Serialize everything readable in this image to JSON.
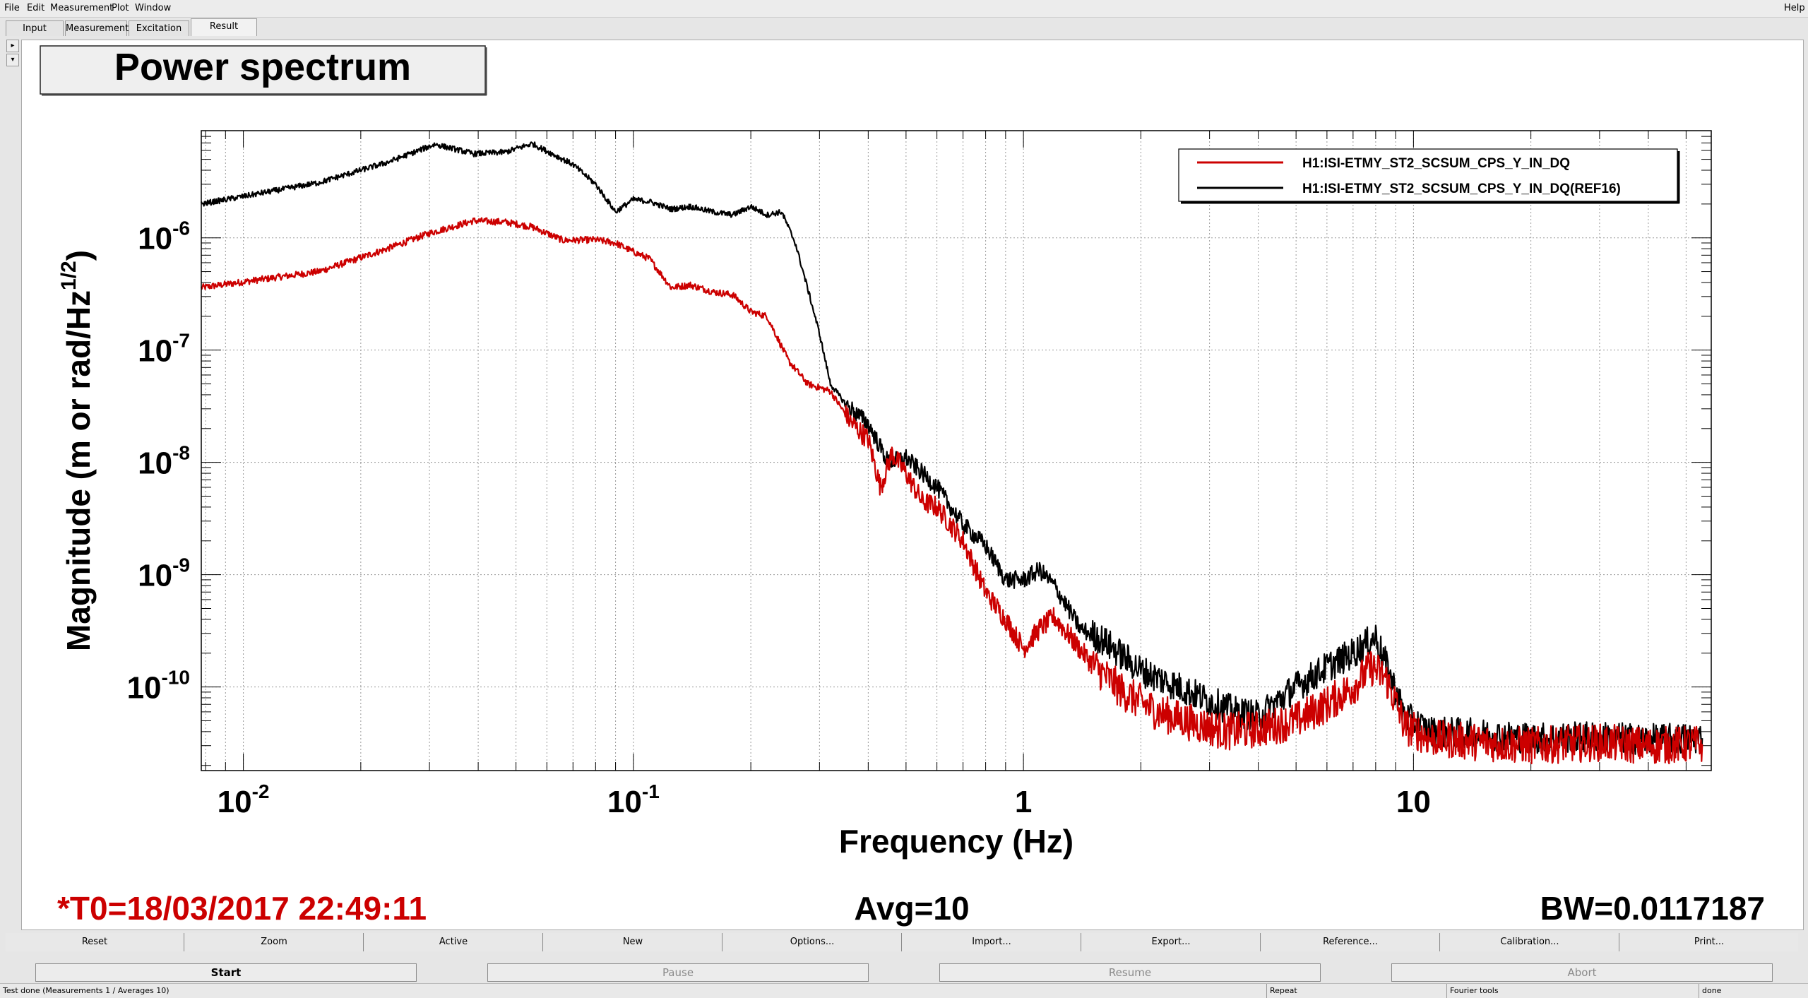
{
  "menu": {
    "file": "File",
    "edit": "Edit",
    "measurement": "Measurement",
    "plot": "Plot",
    "window": "Window",
    "help": "Help"
  },
  "tabs": [
    "Input",
    "Measurement",
    "Excitation",
    "Result"
  ],
  "plot": {
    "title": "Power spectrum",
    "ylabel_main": "Magnitude (m or rad/Hz",
    "ylabel_sup": "1/2",
    "ylabel_close": ")",
    "xlabel": "Frequency (Hz)",
    "t0": "*T0=18/03/2017 22:49:11",
    "avg": "Avg=10",
    "bw": "BW=0.0117187",
    "y_tick_mantissa": "10",
    "y_tick_exps": [
      "-6",
      "-7",
      "-8",
      "-9",
      "-10"
    ],
    "x_tick_labels": [
      {
        "base": "10",
        "exp": "-2"
      },
      {
        "base": "10",
        "exp": "-1"
      },
      {
        "base": "1",
        "exp": ""
      },
      {
        "base": "10",
        "exp": ""
      }
    ],
    "legend": [
      {
        "label": "H1:ISI-ETMY_ST2_SCSUM_CPS_Y_IN_DQ",
        "color": "#cc0000"
      },
      {
        "label": "H1:ISI-ETMY_ST2_SCSUM_CPS_Y_IN_DQ(REF16)",
        "color": "#000000"
      }
    ]
  },
  "chart_data": {
    "type": "line",
    "title": "Power spectrum",
    "xlabel": "Frequency (Hz)",
    "ylabel": "Magnitude (m or rad/Hz^1/2)",
    "x_scale": "log",
    "y_scale": "log",
    "xlim": [
      0.0078,
      58
    ],
    "ylim": [
      1.8e-11,
      9e-06
    ],
    "grid": true,
    "legend_position": "top-right",
    "series": [
      {
        "name": "H1:ISI-ETMY_ST2_SCSUM_CPS_Y_IN_DQ",
        "color": "#cc0000",
        "noise": 0.12,
        "x": [
          0.0078,
          0.0156,
          0.0234,
          0.03,
          0.039,
          0.047,
          0.055,
          0.066,
          0.08,
          0.09,
          0.1,
          0.11,
          0.125,
          0.14,
          0.16,
          0.18,
          0.2,
          0.22,
          0.25,
          0.28,
          0.32,
          0.36,
          0.4,
          0.43,
          0.46,
          0.5,
          0.55,
          0.6,
          0.7,
          0.8,
          0.9,
          1.0,
          1.1,
          1.2,
          1.35,
          1.5,
          1.8,
          2.2,
          2.7,
          3.3,
          4.0,
          5.0,
          6.0,
          7.0,
          7.8,
          8.5,
          9.5,
          11,
          15,
          20,
          30,
          40,
          55
        ],
        "y": [
          3.6e-07,
          5e-07,
          8e-07,
          1.1e-06,
          1.42e-06,
          1.38e-06,
          1.25e-06,
          9.5e-07,
          9.6e-07,
          9e-07,
          7.5e-07,
          6.5e-07,
          3.6e-07,
          3.8e-07,
          3.3e-07,
          3.1e-07,
          2.2e-07,
          2e-07,
          8e-08,
          5e-08,
          4.3e-08,
          2.3e-08,
          1.6e-08,
          6e-09,
          1.2e-08,
          8e-09,
          4.5e-09,
          4e-09,
          2e-09,
          7e-10,
          4e-10,
          2.2e-10,
          3.3e-10,
          4.2e-10,
          2.5e-10,
          1.6e-10,
          9e-11,
          6e-11,
          4.8e-11,
          4e-11,
          4.2e-11,
          5e-11,
          7e-11,
          1e-10,
          1.5e-10,
          1.2e-10,
          4.5e-11,
          3.5e-11,
          3.2e-11,
          3e-11,
          3.2e-11,
          3e-11,
          3.1e-11
        ]
      },
      {
        "name": "H1:ISI-ETMY_ST2_SCSUM_CPS_Y_IN_DQ(REF16)",
        "color": "#000000",
        "noise": 0.1,
        "x": [
          0.0078,
          0.0156,
          0.0234,
          0.031,
          0.039,
          0.047,
          0.055,
          0.07,
          0.08,
          0.09,
          0.1,
          0.11,
          0.125,
          0.14,
          0.16,
          0.18,
          0.2,
          0.22,
          0.24,
          0.26,
          0.28,
          0.3,
          0.32,
          0.35,
          0.4,
          0.45,
          0.5,
          0.6,
          0.7,
          0.8,
          0.9,
          1.0,
          1.1,
          1.2,
          1.4,
          1.6,
          2.0,
          2.5,
          3.0,
          3.5,
          4.0,
          5.0,
          6.0,
          7.0,
          8.0,
          8.5,
          9.5,
          11,
          15,
          20,
          30,
          40,
          55
        ],
        "y": [
          2e-06,
          3.1e-06,
          4.7e-06,
          6.8e-06,
          5.6e-06,
          5.8e-06,
          6.9e-06,
          4.5e-06,
          3e-06,
          1.7e-06,
          2.2e-06,
          2.1e-06,
          1.8e-06,
          1.9e-06,
          1.7e-06,
          1.6e-06,
          1.9e-06,
          1.6e-06,
          1.7e-06,
          9e-07,
          3.5e-07,
          1.4e-07,
          5e-08,
          3.3e-08,
          2.2e-08,
          1e-08,
          1.1e-08,
          6e-09,
          2.8e-09,
          1.8e-09,
          9e-10,
          9e-10,
          1.1e-09,
          8e-10,
          3.3e-10,
          2.6e-10,
          1.4e-10,
          1e-10,
          7.5e-11,
          6e-11,
          5.5e-11,
          1e-10,
          1.5e-10,
          2e-10,
          2.8e-10,
          1.6e-10,
          5.5e-11,
          4e-11,
          3.8e-11,
          3.5e-11,
          3.6e-11,
          3.4e-11,
          3.5e-11
        ]
      }
    ]
  },
  "toolbar": [
    "Reset",
    "Zoom",
    "Active",
    "New",
    "Options...",
    "Import...",
    "Export...",
    "Reference...",
    "Calibration...",
    "Print..."
  ],
  "run": {
    "start": "Start",
    "pause": "Pause",
    "resume": "Resume",
    "abort": "Abort"
  },
  "status": {
    "message": "Test done (Measurements 1 / Averages 10)",
    "repeat": "Repeat",
    "fourier": "Fourier tools",
    "done": "done"
  }
}
